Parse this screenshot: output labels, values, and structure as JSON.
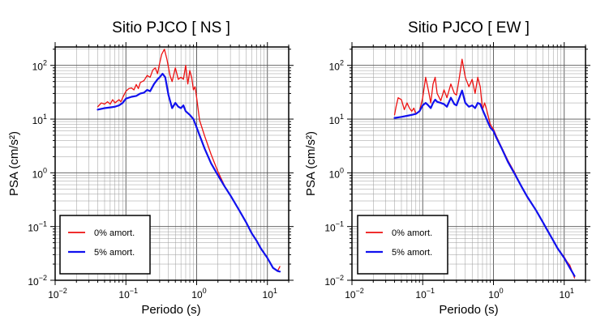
{
  "chart_data": [
    {
      "type": "line",
      "title": "Sitio PJCO [ NS ]",
      "xlabel": "Periodo (s)",
      "ylabel": "PSA (cm/s²)",
      "xscale": "log",
      "yscale": "log",
      "xlim": [
        0.01,
        20
      ],
      "ylim": [
        0.01,
        220
      ],
      "xticks": [
        0.01,
        0.1,
        1,
        10
      ],
      "yticks": [
        0.01,
        0.1,
        1,
        10,
        100
      ],
      "grid": true,
      "legend_position": "bottom-left",
      "series": [
        {
          "name": "0% amort.",
          "color": "#ee1111",
          "x": [
            0.04,
            0.045,
            0.05,
            0.055,
            0.06,
            0.065,
            0.07,
            0.08,
            0.085,
            0.09,
            0.1,
            0.11,
            0.12,
            0.13,
            0.14,
            0.15,
            0.16,
            0.18,
            0.2,
            0.22,
            0.24,
            0.26,
            0.28,
            0.3,
            0.32,
            0.35,
            0.38,
            0.42,
            0.45,
            0.5,
            0.55,
            0.6,
            0.65,
            0.7,
            0.75,
            0.8,
            0.85,
            0.9,
            0.95,
            1.0,
            1.1,
            1.3,
            1.6,
            2.0,
            2.5,
            3.0,
            4.0,
            5.0,
            6.0,
            7.0,
            8.0,
            10.0,
            12.0,
            14.0,
            15.0
          ],
          "values": [
            17,
            20,
            19,
            21,
            19,
            23,
            20,
            23,
            21,
            25,
            33,
            37,
            38,
            35,
            44,
            37,
            48,
            52,
            65,
            60,
            82,
            90,
            70,
            110,
            160,
            200,
            130,
            65,
            50,
            90,
            55,
            60,
            55,
            100,
            45,
            80,
            60,
            35,
            40,
            25,
            9.5,
            4.8,
            2.2,
            1.05,
            0.56,
            0.38,
            0.2,
            0.12,
            0.075,
            0.055,
            0.04,
            0.026,
            0.017,
            0.015,
            0.018
          ]
        },
        {
          "name": "5% amort.",
          "color": "#1111ee",
          "x": [
            0.04,
            0.05,
            0.06,
            0.07,
            0.08,
            0.09,
            0.1,
            0.12,
            0.14,
            0.16,
            0.18,
            0.2,
            0.22,
            0.25,
            0.28,
            0.3,
            0.33,
            0.36,
            0.4,
            0.45,
            0.5,
            0.55,
            0.6,
            0.65,
            0.7,
            0.8,
            0.9,
            1.0,
            1.1,
            1.3,
            1.6,
            2.0,
            2.5,
            3.0,
            4.0,
            5.0,
            6.0,
            7.0,
            8.0,
            10.0,
            12.0,
            14.0,
            15.0
          ],
          "values": [
            15,
            16,
            16.5,
            17,
            18,
            20,
            24,
            26,
            27,
            30,
            31,
            35,
            33,
            45,
            55,
            60,
            70,
            60,
            28,
            16,
            20,
            17,
            16,
            18,
            14,
            12,
            10,
            7,
            5,
            2.8,
            1.5,
            0.9,
            0.55,
            0.38,
            0.2,
            0.12,
            0.075,
            0.055,
            0.04,
            0.026,
            0.017,
            0.0148,
            0.0145
          ]
        }
      ]
    },
    {
      "type": "line",
      "title": "Sitio PJCO [ EW ]",
      "xlabel": "Periodo (s)",
      "ylabel": "PSA (cm/s²)",
      "xscale": "log",
      "yscale": "log",
      "xlim": [
        0.01,
        20
      ],
      "ylim": [
        0.01,
        220
      ],
      "xticks": [
        0.01,
        0.1,
        1,
        10
      ],
      "yticks": [
        0.01,
        0.1,
        1,
        10,
        100
      ],
      "grid": true,
      "legend_position": "bottom-left",
      "series": [
        {
          "name": "0% amort.",
          "color": "#ee1111",
          "x": [
            0.04,
            0.042,
            0.045,
            0.05,
            0.055,
            0.06,
            0.065,
            0.07,
            0.075,
            0.08,
            0.09,
            0.1,
            0.11,
            0.12,
            0.13,
            0.14,
            0.15,
            0.16,
            0.18,
            0.2,
            0.22,
            0.25,
            0.28,
            0.3,
            0.33,
            0.36,
            0.4,
            0.45,
            0.5,
            0.55,
            0.6,
            0.65,
            0.7,
            0.75,
            0.8,
            0.9,
            1.0,
            1.1,
            1.3,
            1.6,
            2.0,
            2.5,
            3.0,
            4.0,
            5.0,
            6.0,
            7.0,
            8.0,
            10.0,
            11.0,
            12.0,
            14.0
          ],
          "values": [
            12,
            17,
            25,
            23,
            15,
            20,
            16,
            14,
            16,
            12.5,
            14,
            25,
            60,
            35,
            20,
            45,
            60,
            30,
            22,
            35,
            25,
            45,
            30,
            28,
            60,
            130,
            60,
            40,
            55,
            30,
            60,
            40,
            15,
            20,
            15,
            8,
            6.5,
            4.8,
            3.0,
            1.7,
            1.0,
            0.55,
            0.35,
            0.2,
            0.12,
            0.08,
            0.055,
            0.04,
            0.027,
            0.022,
            0.019,
            0.011
          ]
        },
        {
          "name": "5% amort.",
          "color": "#1111ee",
          "x": [
            0.04,
            0.05,
            0.06,
            0.07,
            0.08,
            0.09,
            0.1,
            0.11,
            0.12,
            0.13,
            0.14,
            0.15,
            0.16,
            0.18,
            0.2,
            0.22,
            0.25,
            0.28,
            0.3,
            0.33,
            0.36,
            0.4,
            0.45,
            0.5,
            0.55,
            0.6,
            0.65,
            0.7,
            0.8,
            0.9,
            1.0,
            1.1,
            1.3,
            1.6,
            2.0,
            2.5,
            3.0,
            4.0,
            5.0,
            6.0,
            7.0,
            8.0,
            10.0,
            12.0,
            14.0
          ],
          "values": [
            10.5,
            11,
            11.5,
            12,
            12.5,
            14,
            18,
            20,
            18,
            16,
            20,
            23,
            21,
            20,
            19,
            17,
            25,
            19,
            18,
            25,
            34,
            20,
            17,
            18,
            16,
            20,
            19,
            15,
            10,
            7,
            6,
            4.5,
            2.9,
            1.6,
            0.95,
            0.55,
            0.36,
            0.2,
            0.12,
            0.078,
            0.055,
            0.04,
            0.026,
            0.017,
            0.012
          ]
        }
      ]
    }
  ]
}
